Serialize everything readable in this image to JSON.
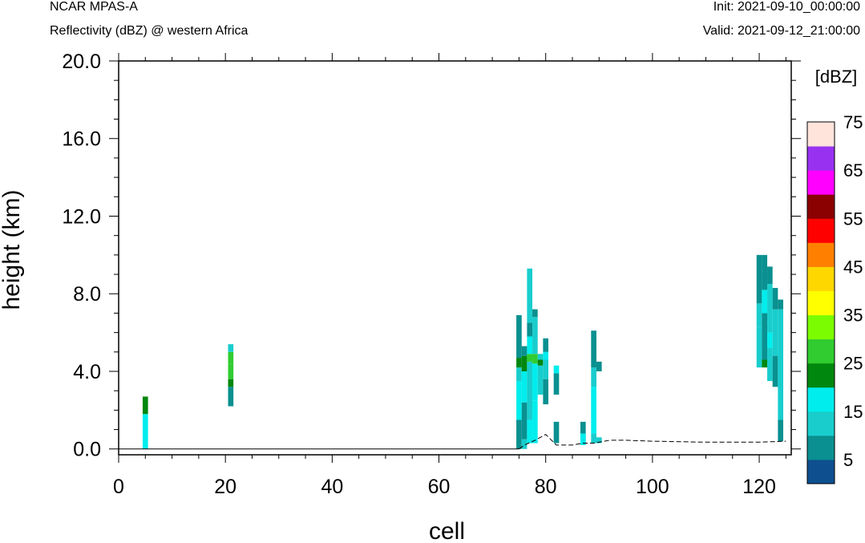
{
  "header": {
    "model": "NCAR MPAS-A",
    "subtitle": "Reflectivity (dBZ) @ western Africa",
    "init": "Init: 2021-09-10_00:00:00",
    "valid": "Valid: 2021-09-12_21:00:00"
  },
  "chart_data": {
    "type": "heatmap",
    "xlabel": "cell",
    "ylabel": "height (km)",
    "xlim": [
      0,
      126
    ],
    "ylim": [
      -0.3,
      20.0
    ],
    "xticks": [
      0,
      20,
      40,
      60,
      80,
      100,
      120
    ],
    "xtick_labels": [
      "0",
      "20",
      "40",
      "60",
      "80",
      "100",
      "120"
    ],
    "yticks": [
      0,
      4,
      8,
      12,
      16,
      20
    ],
    "ytick_labels": [
      "0.0",
      "4.0",
      "8.0",
      "12.0",
      "16.0",
      "20.0"
    ],
    "colorbar": {
      "title": "[dBZ]",
      "levels": [
        0,
        5,
        10,
        15,
        20,
        25,
        30,
        35,
        40,
        45,
        50,
        55,
        60,
        65,
        70,
        75
      ],
      "labels": [
        "5",
        "15",
        "25",
        "35",
        "45",
        "55",
        "65",
        "75"
      ],
      "colors": [
        "#0e4f8f",
        "#0a9090",
        "#19cdcd",
        "#00eded",
        "#00870d",
        "#30cc30",
        "#7cfc00",
        "#ffff00",
        "#ffd700",
        "#ff8000",
        "#ff0000",
        "#8b0000",
        "#ff00ff",
        "#9932f0",
        "#ffe4dc"
      ]
    },
    "terrain": [
      [
        75,
        0.0
      ],
      [
        76,
        0.2
      ],
      [
        78,
        0.45
      ],
      [
        80,
        0.75
      ],
      [
        82,
        0.2
      ],
      [
        85,
        0.2
      ],
      [
        87,
        0.3
      ],
      [
        89,
        0.3
      ],
      [
        92,
        0.45
      ],
      [
        95,
        0.45
      ],
      [
        100,
        0.4
      ],
      [
        110,
        0.35
      ],
      [
        120,
        0.35
      ],
      [
        125,
        0.4
      ]
    ],
    "cells": [
      [
        5,
        0.0,
        1.8,
        15
      ],
      [
        5,
        1.8,
        2.7,
        20
      ],
      [
        21,
        2.2,
        3.2,
        5
      ],
      [
        21,
        3.2,
        3.6,
        20
      ],
      [
        21,
        3.6,
        4.4,
        25
      ],
      [
        21,
        4.4,
        5.0,
        25
      ],
      [
        21,
        5.0,
        5.4,
        10
      ],
      [
        75,
        0.0,
        1.5,
        5
      ],
      [
        75,
        1.5,
        3.5,
        15
      ],
      [
        75,
        3.5,
        4.2,
        10
      ],
      [
        75,
        4.2,
        4.7,
        20
      ],
      [
        75,
        4.7,
        6.9,
        5
      ],
      [
        76,
        0.0,
        0.5,
        10
      ],
      [
        76,
        0.5,
        2.4,
        5
      ],
      [
        76,
        2.4,
        4.0,
        15
      ],
      [
        76,
        4.0,
        4.8,
        20
      ],
      [
        76,
        4.8,
        5.3,
        5
      ],
      [
        77,
        0.3,
        1.5,
        15
      ],
      [
        77,
        1.5,
        4.5,
        10
      ],
      [
        77,
        4.5,
        4.9,
        25
      ],
      [
        77,
        4.9,
        5.8,
        15
      ],
      [
        77,
        5.8,
        6.5,
        5
      ],
      [
        77,
        6.5,
        7.0,
        10
      ],
      [
        77,
        7.0,
        9.3,
        10
      ],
      [
        78,
        0.3,
        2.5,
        15
      ],
      [
        78,
        2.5,
        4.4,
        15
      ],
      [
        78,
        4.4,
        4.9,
        25
      ],
      [
        78,
        4.9,
        6.8,
        10
      ],
      [
        78,
        6.8,
        7.2,
        5
      ],
      [
        79,
        2.8,
        4.3,
        10
      ],
      [
        79,
        4.3,
        4.6,
        20
      ],
      [
        79,
        4.6,
        4.9,
        10
      ],
      [
        80,
        2.3,
        3.6,
        5
      ],
      [
        80,
        3.6,
        4.6,
        10
      ],
      [
        80,
        4.6,
        5.0,
        15
      ],
      [
        80,
        5.0,
        5.7,
        5
      ],
      [
        82,
        2.8,
        3.9,
        5
      ],
      [
        82,
        3.9,
        4.3,
        15
      ],
      [
        82,
        0.3,
        1.4,
        5
      ],
      [
        87,
        0.2,
        1.4,
        5
      ],
      [
        87,
        0.2,
        0.8,
        15
      ],
      [
        89,
        0.3,
        0.8,
        10
      ],
      [
        89,
        0.8,
        3.2,
        15
      ],
      [
        89,
        3.2,
        4.2,
        10
      ],
      [
        89,
        4.2,
        6.1,
        5
      ],
      [
        90,
        0.3,
        0.6,
        10
      ],
      [
        90,
        4.0,
        4.5,
        5
      ],
      [
        120,
        6.3,
        7.5,
        10
      ],
      [
        120,
        7.5,
        10.0,
        5
      ],
      [
        120,
        4.2,
        6.3,
        10
      ],
      [
        121,
        4.2,
        4.6,
        20
      ],
      [
        121,
        4.6,
        7.0,
        5
      ],
      [
        121,
        7.0,
        8.2,
        15
      ],
      [
        121,
        8.2,
        10.0,
        5
      ],
      [
        122,
        3.5,
        5.2,
        10
      ],
      [
        122,
        5.2,
        6.0,
        15
      ],
      [
        122,
        6.0,
        8.5,
        10
      ],
      [
        122,
        8.5,
        9.4,
        5
      ],
      [
        123,
        3.2,
        4.8,
        5
      ],
      [
        123,
        4.8,
        7.2,
        10
      ],
      [
        123,
        7.2,
        8.3,
        5
      ],
      [
        124,
        0.4,
        1.5,
        5
      ],
      [
        124,
        1.5,
        7.2,
        10
      ],
      [
        124,
        7.2,
        7.7,
        5
      ]
    ]
  }
}
